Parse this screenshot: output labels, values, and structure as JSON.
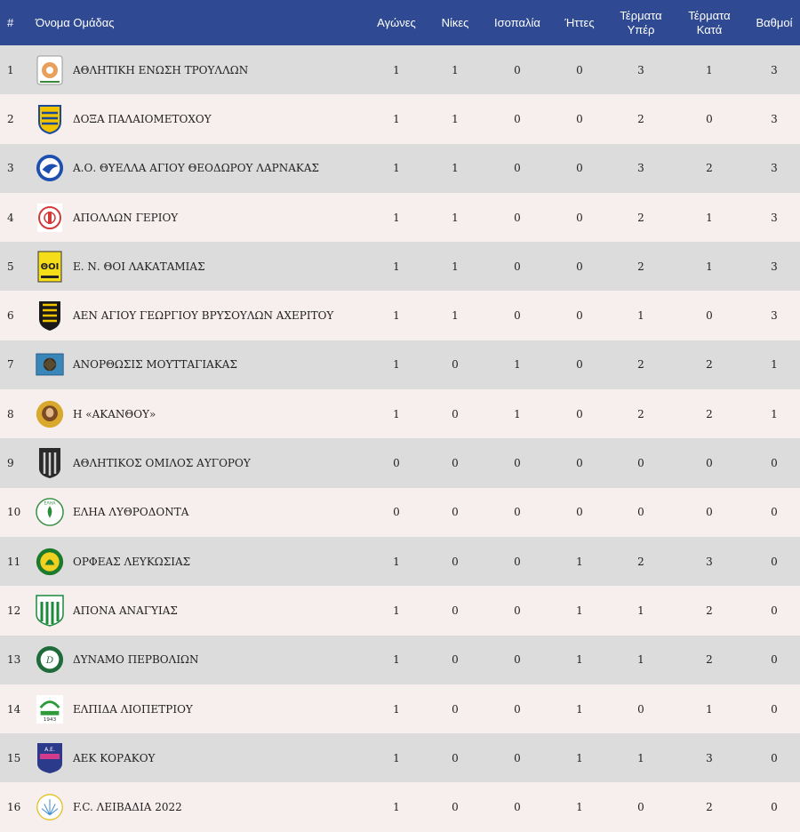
{
  "headers": {
    "rank": "#",
    "team": "Όνομα Ομάδας",
    "played": "Αγώνες",
    "wins": "Νίκες",
    "draws": "Ισοπαλία",
    "losses": "Ήττες",
    "goals_for_1": "Τέρματα",
    "goals_for_2": "Υπέρ",
    "goals_against_1": "Τέρματα",
    "goals_against_2": "Κατά",
    "points": "Βαθμοί"
  },
  "colors": {
    "header_bg": "#2f4a92",
    "row_odd": "#dcdcdc",
    "row_even": "#f7eeee"
  },
  "rows": [
    {
      "rank": "1",
      "team": "ΑΘΛΗΤΙΚΗ ΕΝΩΣΗ ΤΡΟΥΛΛΩΝ",
      "logo": "trouloi-crest-icon",
      "played": "1",
      "wins": "1",
      "draws": "0",
      "losses": "0",
      "gf": "3",
      "ga": "1",
      "pts": "3"
    },
    {
      "rank": "2",
      "team": "ΔΟΞΑ ΠΑΛΑΙΟΜΕΤΟΧΟΥ",
      "logo": "doxa-crest-icon",
      "played": "1",
      "wins": "1",
      "draws": "0",
      "losses": "0",
      "gf": "2",
      "ga": "0",
      "pts": "3"
    },
    {
      "rank": "3",
      "team": "Α.Ο. ΘΥΕΛΛΑ ΑΓΙΟΥ ΘΕΟΔΩΡΟΥ ΛΑΡΝΑΚΑΣ",
      "logo": "thyella-crest-icon",
      "played": "1",
      "wins": "1",
      "draws": "0",
      "losses": "0",
      "gf": "3",
      "ga": "2",
      "pts": "3"
    },
    {
      "rank": "4",
      "team": "ΑΠΟΛΛΩΝ ΓΕΡΙΟΥ",
      "logo": "apollon-crest-icon",
      "played": "1",
      "wins": "1",
      "draws": "0",
      "losses": "0",
      "gf": "2",
      "ga": "1",
      "pts": "3"
    },
    {
      "rank": "5",
      "team": "Ε. Ν. ΘΟΙ ΛΑΚΑΤΑΜΙΑΣ",
      "logo": "thoi-crest-icon",
      "played": "1",
      "wins": "1",
      "draws": "0",
      "losses": "0",
      "gf": "2",
      "ga": "1",
      "pts": "3"
    },
    {
      "rank": "6",
      "team": "ΑΕΝ ΑΓΙΟΥ ΓΕΩΡΓΙΟΥ ΒΡΥΣΟΥΛΩΝ ΑΧΕΡΙΤΟΥ",
      "logo": "aen-crest-icon",
      "played": "1",
      "wins": "1",
      "draws": "0",
      "losses": "0",
      "gf": "1",
      "ga": "0",
      "pts": "3"
    },
    {
      "rank": "7",
      "team": "ΑΝΟΡΘΩΣΙΣ ΜΟΥΤΤΑΓΙΑΚΑΣ",
      "logo": "anorthosis-crest-icon",
      "played": "1",
      "wins": "0",
      "draws": "1",
      "losses": "0",
      "gf": "2",
      "ga": "2",
      "pts": "1"
    },
    {
      "rank": "8",
      "team": "Η «ΑΚΑΝΘΟΥ»",
      "logo": "akanthou-crest-icon",
      "played": "1",
      "wins": "0",
      "draws": "1",
      "losses": "0",
      "gf": "2",
      "ga": "2",
      "pts": "1"
    },
    {
      "rank": "9",
      "team": "ΑΘΛΗΤΙΚΟΣ ΟΜΙΛΟΣ ΑΥΓΟΡΟΥ",
      "logo": "avgorou-crest-icon",
      "played": "0",
      "wins": "0",
      "draws": "0",
      "losses": "0",
      "gf": "0",
      "ga": "0",
      "pts": "0"
    },
    {
      "rank": "10",
      "team": "ΕΛΗΑ ΛΥΘΡΟΔΟΝΤΑ",
      "logo": "elia-crest-icon",
      "played": "0",
      "wins": "0",
      "draws": "0",
      "losses": "0",
      "gf": "0",
      "ga": "0",
      "pts": "0"
    },
    {
      "rank": "11",
      "team": "ΟΡΦΕΑΣ ΛΕΥΚΩΣΙΑΣ",
      "logo": "orfeas-crest-icon",
      "played": "1",
      "wins": "0",
      "draws": "0",
      "losses": "1",
      "gf": "2",
      "ga": "3",
      "pts": "0"
    },
    {
      "rank": "12",
      "team": "ΑΠΟΝΑ ΑΝΑΓΥΙΑΣ",
      "logo": "apona-crest-icon",
      "played": "1",
      "wins": "0",
      "draws": "0",
      "losses": "1",
      "gf": "1",
      "ga": "2",
      "pts": "0"
    },
    {
      "rank": "13",
      "team": "ΔΥΝΑΜΟ ΠΕΡΒΟΛΙΩΝ",
      "logo": "dynamo-crest-icon",
      "played": "1",
      "wins": "0",
      "draws": "0",
      "losses": "1",
      "gf": "1",
      "ga": "2",
      "pts": "0"
    },
    {
      "rank": "14",
      "team": "ΕΛΠΙΔΑ ΛΙΟΠΕΤΡΙΟΥ",
      "logo": "elpida-crest-icon",
      "played": "1",
      "wins": "0",
      "draws": "0",
      "losses": "1",
      "gf": "0",
      "ga": "1",
      "pts": "0"
    },
    {
      "rank": "15",
      "team": "ΑΕΚ ΚΟΡΑΚΟΥ",
      "logo": "aek-crest-icon",
      "played": "1",
      "wins": "0",
      "draws": "0",
      "losses": "1",
      "gf": "1",
      "ga": "3",
      "pts": "0"
    },
    {
      "rank": "16",
      "team": "F.C. ΛΕΙΒΑΔΙΑ 2022",
      "logo": "livadia-crest-icon",
      "played": "1",
      "wins": "0",
      "draws": "0",
      "losses": "1",
      "gf": "0",
      "ga": "2",
      "pts": "0"
    }
  ]
}
